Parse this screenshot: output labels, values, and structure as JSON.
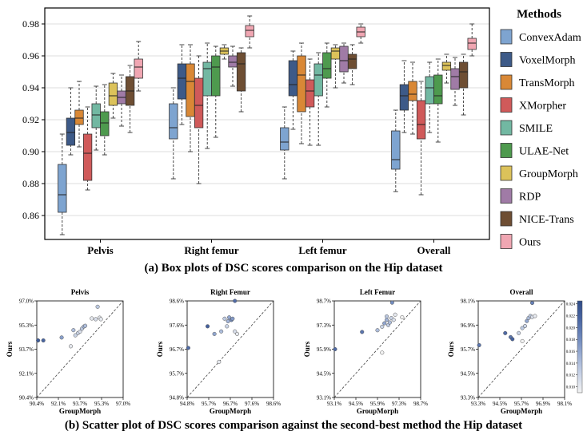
{
  "caption_a": "(a) Box plots of DSC scores comparison on the Hip dataset",
  "caption_b": "(b) Scatter plot of DSC scores  comparison  against the second-best method the Hip dataset",
  "chart_data": [
    {
      "type": "box",
      "legend_title": "Methods",
      "legend_placement": "right",
      "categories": [
        "Pelvis",
        "Right femur",
        "Left femur",
        "Overall"
      ],
      "ylim": [
        0.845,
        0.99
      ],
      "yticks": [
        0.86,
        0.88,
        0.9,
        0.92,
        0.94,
        0.96,
        0.98
      ],
      "ytick_labels": [
        "0.86",
        "0.88",
        "0.90",
        "0.92",
        "0.94",
        "0.96",
        "0.98"
      ],
      "colors": [
        "#7ea4d0",
        "#3d5a88",
        "#d98836",
        "#d05a5a",
        "#72b8a2",
        "#4e9a4e",
        "#dcc25a",
        "#a07ba6",
        "#6e4e33",
        "#f0a6b2"
      ],
      "series": [
        {
          "name": "ConvexAdam",
          "boxes": [
            [
              0.848,
              0.862,
              0.873,
              0.892,
              0.911
            ],
            [
              0.883,
              0.908,
              0.915,
              0.93,
              0.94
            ],
            [
              0.883,
              0.901,
              0.906,
              0.915,
              0.928
            ],
            [
              0.875,
              0.889,
              0.895,
              0.913,
              0.926
            ]
          ]
        },
        {
          "name": "VoxelMorph",
          "boxes": [
            [
              0.898,
              0.904,
              0.912,
              0.921,
              0.94
            ],
            [
              0.917,
              0.933,
              0.946,
              0.955,
              0.967
            ],
            [
              0.914,
              0.935,
              0.942,
              0.957,
              0.963
            ],
            [
              0.912,
              0.926,
              0.935,
              0.942,
              0.957
            ]
          ]
        },
        {
          "name": "TransMorph",
          "boxes": [
            [
              0.903,
              0.917,
              0.921,
              0.926,
              0.944
            ],
            [
              0.9,
              0.922,
              0.944,
              0.955,
              0.967
            ],
            [
              0.905,
              0.925,
              0.948,
              0.96,
              0.968
            ],
            [
              0.911,
              0.932,
              0.936,
              0.944,
              0.956
            ]
          ]
        },
        {
          "name": "XMorpher",
          "boxes": [
            [
              0.876,
              0.882,
              0.899,
              0.911,
              0.928
            ],
            [
              0.88,
              0.915,
              0.929,
              0.946,
              0.96
            ],
            [
              0.904,
              0.928,
              0.938,
              0.945,
              0.958
            ],
            [
              0.873,
              0.908,
              0.917,
              0.932,
              0.944
            ]
          ]
        },
        {
          "name": "SMILE",
          "boxes": [
            [
              0.901,
              0.915,
              0.923,
              0.93,
              0.941
            ],
            [
              0.902,
              0.935,
              0.952,
              0.956,
              0.968
            ],
            [
              0.904,
              0.935,
              0.948,
              0.955,
              0.962
            ],
            [
              0.912,
              0.93,
              0.94,
              0.947,
              0.956
            ]
          ]
        },
        {
          "name": "ULAE-Net",
          "boxes": [
            [
              0.898,
              0.91,
              0.918,
              0.925,
              0.942
            ],
            [
              0.909,
              0.935,
              0.953,
              0.96,
              0.966
            ],
            [
              0.928,
              0.946,
              0.952,
              0.962,
              0.968
            ],
            [
              0.906,
              0.93,
              0.935,
              0.948,
              0.958
            ]
          ]
        },
        {
          "name": "GroupMorph",
          "boxes": [
            [
              0.921,
              0.929,
              0.935,
              0.943,
              0.949
            ],
            [
              0.958,
              0.961,
              0.963,
              0.965,
              0.967
            ],
            [
              0.94,
              0.958,
              0.963,
              0.965,
              0.967
            ],
            [
              0.943,
              0.951,
              0.954,
              0.956,
              0.961
            ]
          ]
        },
        {
          "name": "RDP",
          "boxes": [
            [
              0.916,
              0.93,
              0.934,
              0.938,
              0.948
            ],
            [
              0.941,
              0.953,
              0.956,
              0.96,
              0.966
            ],
            [
              0.943,
              0.95,
              0.957,
              0.966,
              0.968
            ],
            [
              0.929,
              0.939,
              0.947,
              0.952,
              0.959
            ]
          ]
        },
        {
          "name": "NICE-Trans",
          "boxes": [
            [
              0.912,
              0.929,
              0.938,
              0.947,
              0.954
            ],
            [
              0.925,
              0.938,
              0.955,
              0.962,
              0.965
            ],
            [
              0.942,
              0.952,
              0.958,
              0.961,
              0.967
            ],
            [
              0.923,
              0.94,
              0.95,
              0.956,
              0.961
            ]
          ]
        },
        {
          "name": "Ours",
          "boxes": [
            [
              0.938,
              0.946,
              0.953,
              0.958,
              0.969
            ],
            [
              0.965,
              0.972,
              0.976,
              0.979,
              0.985
            ],
            [
              0.968,
              0.972,
              0.975,
              0.978,
              0.98
            ],
            [
              0.96,
              0.964,
              0.968,
              0.971,
              0.98
            ]
          ]
        }
      ]
    },
    {
      "type": "scatter",
      "title": "Pelvis",
      "xlabel": "GroupMorph",
      "ylabel": "Ours",
      "xlim": [
        90.4,
        97.0
      ],
      "ylim": [
        90.4,
        97.0
      ],
      "xtick_labels": [
        "90.4%",
        "92.1%",
        "93.7%",
        "95.3%",
        "97.0%"
      ],
      "ytick_labels": [
        "90.4%",
        "92.1%",
        "93.7%",
        "95.3%",
        "97.0%"
      ],
      "points": [
        [
          90.5,
          94.3,
          0.0225
        ],
        [
          90.9,
          94.3,
          0.0215
        ],
        [
          92.3,
          94.5,
          0.0165
        ],
        [
          93.0,
          93.9,
          0.01
        ],
        [
          93.2,
          95.0,
          0.014
        ],
        [
          93.35,
          94.65,
          0.012
        ],
        [
          93.55,
          94.8,
          0.012
        ],
        [
          93.7,
          94.9,
          0.011
        ],
        [
          93.85,
          95.1,
          0.013
        ],
        [
          94.0,
          95.25,
          0.015
        ],
        [
          94.1,
          95.3,
          0.014
        ],
        [
          94.6,
          95.8,
          0.01
        ],
        [
          94.9,
          95.75,
          0.011
        ],
        [
          95.2,
          95.85,
          0.01
        ],
        [
          95.3,
          95.75,
          0.01
        ],
        [
          95.05,
          96.6,
          0.013
        ]
      ]
    },
    {
      "type": "scatter",
      "title": "Right Femur",
      "xlabel": "GroupMorph",
      "ylabel": "Ours",
      "xlim": [
        94.8,
        98.6
      ],
      "ylim": [
        94.8,
        98.6
      ],
      "xtick_labels": [
        "94.8%",
        "95.7%",
        "96.7%",
        "97.6%",
        "98.6%"
      ],
      "ytick_labels": [
        "94.8%",
        "95.7%",
        "96.7%",
        "97.6%",
        "98.6%"
      ],
      "points": [
        [
          94.85,
          96.75,
          0.021
        ],
        [
          95.7,
          97.6,
          0.022
        ],
        [
          96.0,
          97.3,
          0.016
        ],
        [
          96.3,
          97.4,
          0.014
        ],
        [
          96.45,
          97.9,
          0.013
        ],
        [
          96.6,
          97.8,
          0.015
        ],
        [
          96.65,
          97.95,
          0.016
        ],
        [
          96.75,
          97.85,
          0.018
        ],
        [
          96.8,
          97.9,
          0.017
        ],
        [
          96.9,
          97.4,
          0.011
        ],
        [
          97.0,
          97.3,
          0.01
        ],
        [
          96.55,
          97.6,
          0.012
        ],
        [
          96.2,
          96.2,
          0.01
        ],
        [
          96.9,
          98.6,
          0.021
        ]
      ]
    },
    {
      "type": "scatter",
      "title": "Left Femur",
      "xlabel": "GroupMorph",
      "ylabel": "Ours",
      "xlim": [
        93.1,
        98.7
      ],
      "ylim": [
        93.1,
        98.7
      ],
      "xtick_labels": [
        "93.1%",
        "94.5%",
        "95.9%",
        "97.3%",
        "98.7%"
      ],
      "ytick_labels": [
        "93.1%",
        "94.5%",
        "95.9%",
        "97.3%",
        "98.7%"
      ],
      "points": [
        [
          93.15,
          95.9,
          0.021
        ],
        [
          94.9,
          96.9,
          0.02
        ],
        [
          95.9,
          97.0,
          0.014
        ],
        [
          96.2,
          97.2,
          0.012
        ],
        [
          96.35,
          97.4,
          0.016
        ],
        [
          96.5,
          97.6,
          0.015
        ],
        [
          96.6,
          97.3,
          0.013
        ],
        [
          96.7,
          97.45,
          0.014
        ],
        [
          96.8,
          97.7,
          0.012
        ],
        [
          96.95,
          97.6,
          0.011
        ],
        [
          96.5,
          97.8,
          0.013
        ],
        [
          97.05,
          97.9,
          0.01
        ],
        [
          97.5,
          97.75,
          0.009
        ],
        [
          96.85,
          98.6,
          0.018
        ],
        [
          96.2,
          95.7,
          0.009
        ]
      ]
    },
    {
      "type": "scatter",
      "title": "Overall",
      "xlabel": "GroupMorph",
      "ylabel": "Ours",
      "xlim": [
        93.3,
        98.1
      ],
      "ylim": [
        93.3,
        98.1
      ],
      "xtick_labels": [
        "93.3%",
        "94.5%",
        "95.7%",
        "96.9%",
        "98.1%"
      ],
      "ytick_labels": [
        "93.3%",
        "94.5%",
        "95.7%",
        "96.9%",
        "98.1%"
      ],
      "points": [
        [
          93.35,
          95.9,
          0.02
        ],
        [
          94.8,
          96.5,
          0.021
        ],
        [
          95.1,
          96.3,
          0.02
        ],
        [
          95.2,
          96.2,
          0.022
        ],
        [
          95.55,
          96.5,
          0.012
        ],
        [
          95.75,
          96.75,
          0.013
        ],
        [
          95.9,
          96.85,
          0.012
        ],
        [
          96.0,
          97.1,
          0.016
        ],
        [
          96.1,
          97.25,
          0.014
        ],
        [
          96.2,
          97.35,
          0.013
        ],
        [
          96.3,
          97.3,
          0.011
        ],
        [
          96.45,
          97.35,
          0.01
        ],
        [
          95.75,
          96.1,
          0.009
        ],
        [
          96.3,
          98.0,
          0.019
        ]
      ]
    },
    {
      "type": "colorbar",
      "placement": "right",
      "range": [
        0.009,
        0.0245
      ],
      "tick_labels": [
        "0.010",
        "0.012",
        "0.014",
        "0.016",
        "0.018",
        "0.020",
        "0.022",
        "0.024"
      ],
      "tick_values": [
        0.01,
        0.012,
        0.014,
        0.016,
        0.018,
        0.02,
        0.022,
        0.024
      ],
      "colors": [
        "#f2f2f2",
        "#c9d3e6",
        "#9db0d5",
        "#6e88bc",
        "#4a66a3",
        "#2f4c87"
      ]
    }
  ]
}
